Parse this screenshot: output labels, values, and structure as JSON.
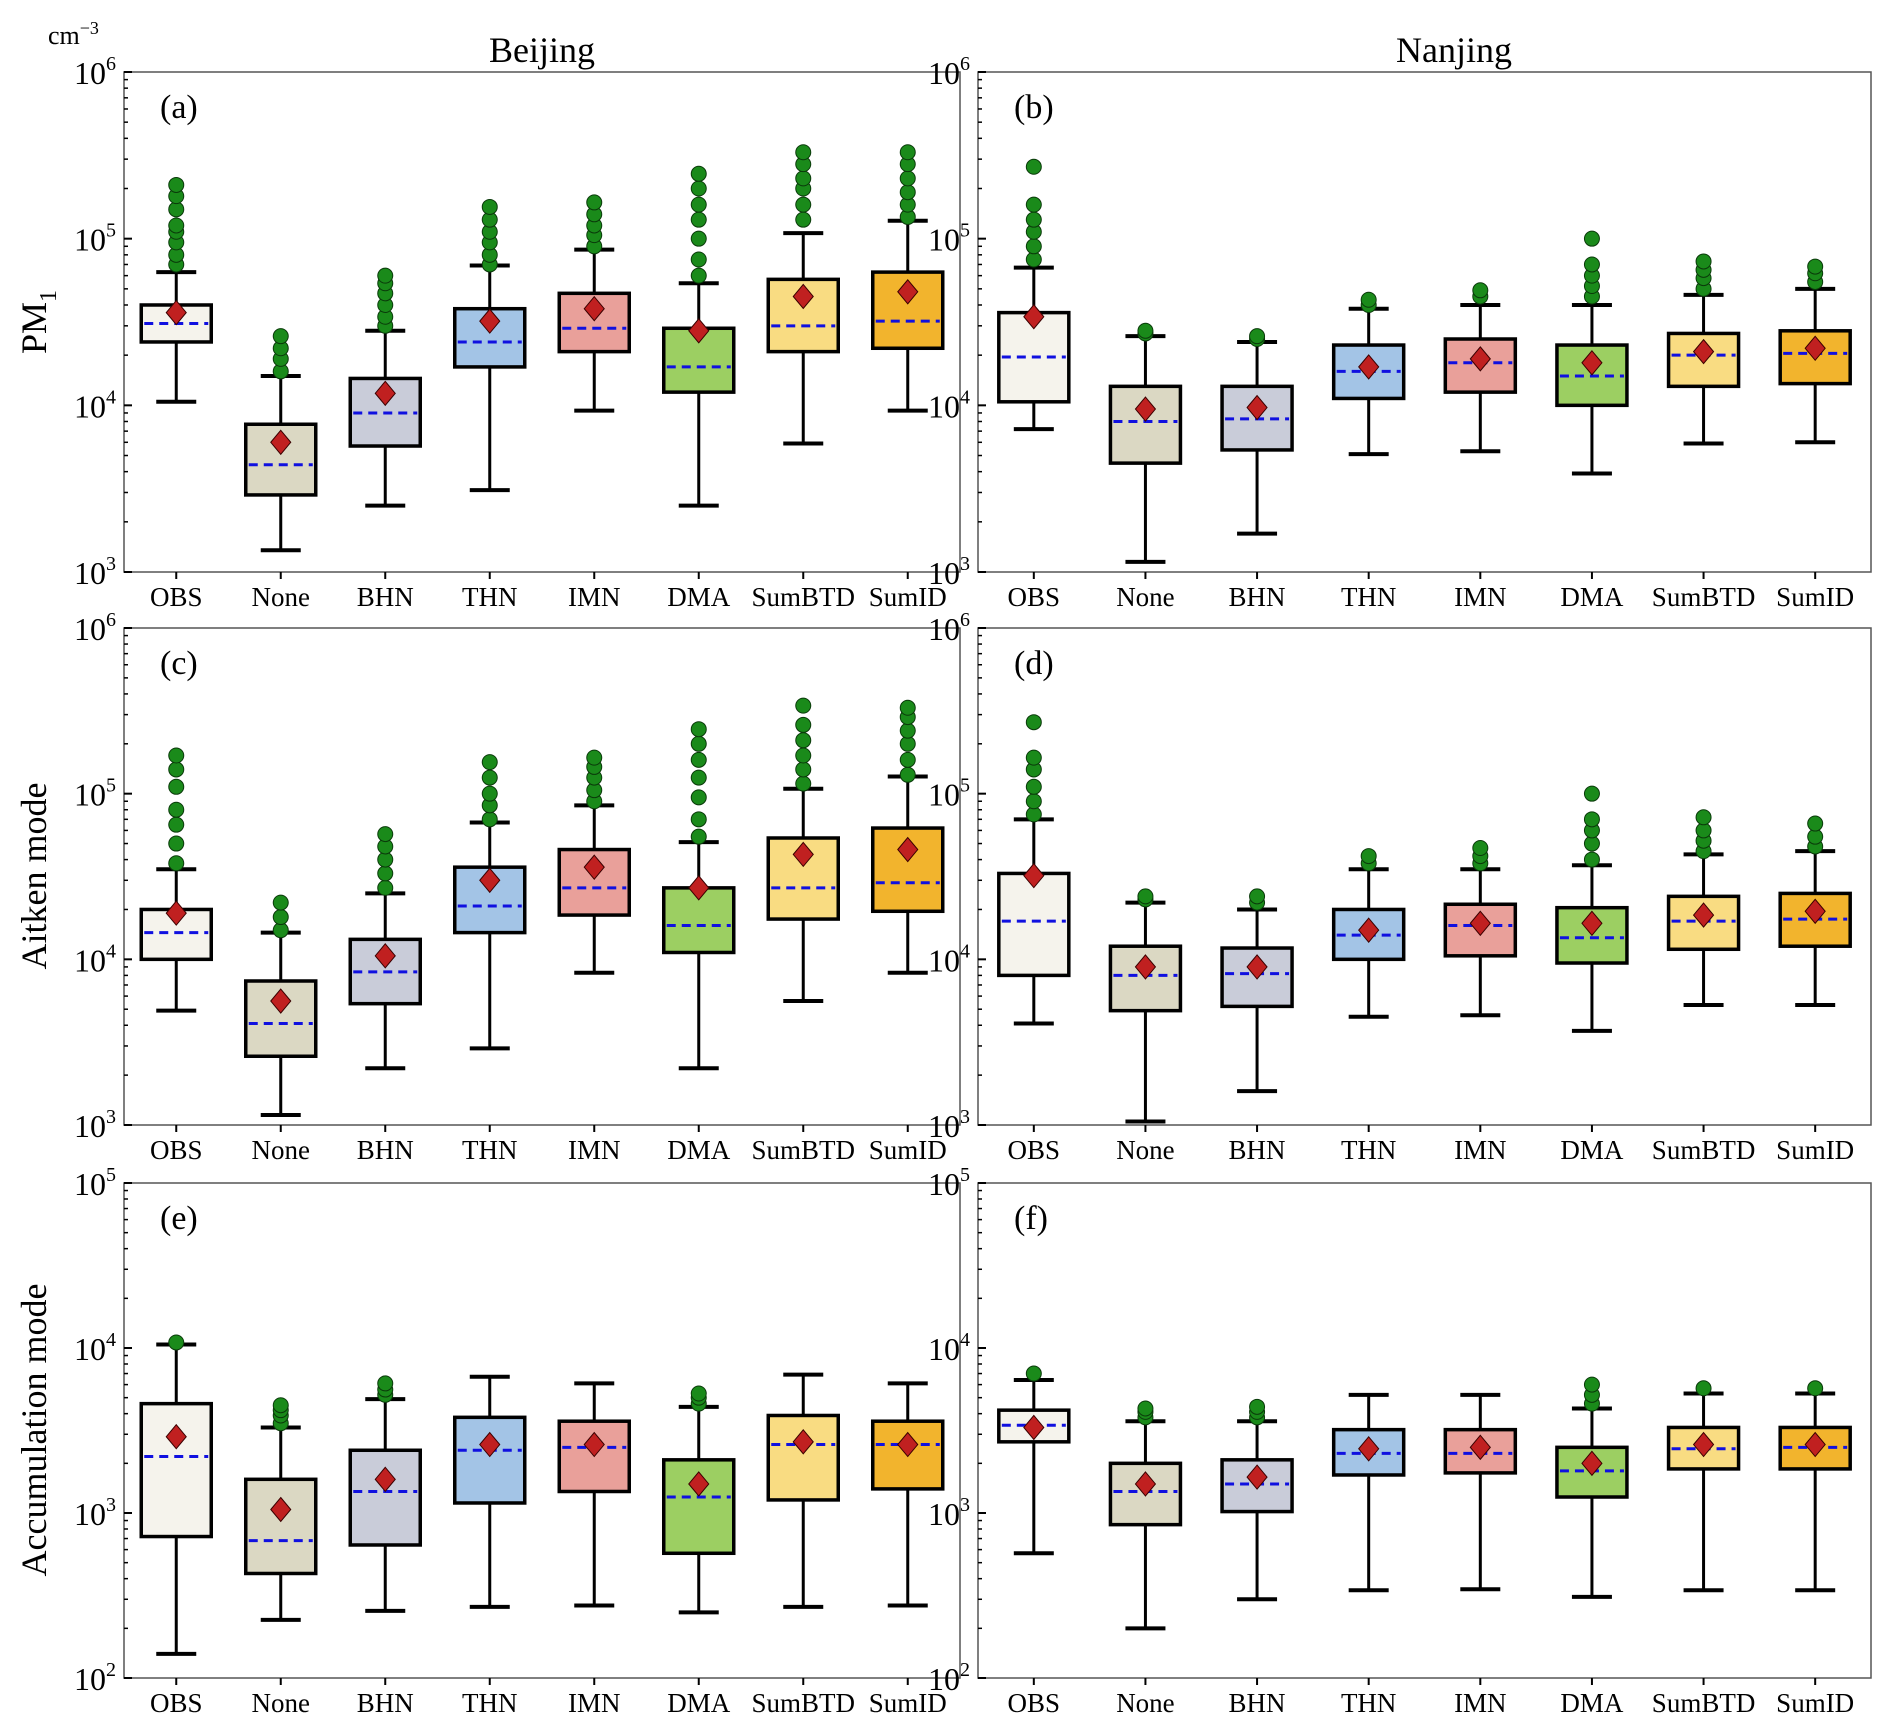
{
  "unit_label": "cm",
  "unit_exp": "−3",
  "column_titles": [
    "Beijing",
    "Nanjing"
  ],
  "row_labels": [
    {
      "main": "PM",
      "sub": "1"
    },
    {
      "main": "Aitken mode",
      "sub": ""
    },
    {
      "main": "Accumulation mode",
      "sub": ""
    }
  ],
  "colors": {
    "OBS": "#f5f3ec",
    "None": "#dbd8c3",
    "BHN": "#c9ccd9",
    "THN": "#a3c4e6",
    "IMN": "#e9a09a",
    "DMA": "#9ccf62",
    "SumBTD": "#f9dc82",
    "SumID": "#f2b42d",
    "median": "#1010e0",
    "mean": "#c02020",
    "outlier": "#1a8a1a"
  },
  "chart_data": [
    {
      "type": "box",
      "label": "(a)",
      "title": "Beijing",
      "ylabel": "PM1",
      "yscale": "log",
      "ylim": [
        1000,
        1000000
      ],
      "categories": [
        "OBS",
        "None",
        "BHN",
        "THN",
        "IMN",
        "DMA",
        "SumBTD",
        "SumID"
      ],
      "boxes": [
        {
          "whislo": 10500,
          "q1": 24000,
          "med": 31000,
          "q3": 40000,
          "whishi": 63000,
          "mean": 36000,
          "fliers": [
            70000,
            80000,
            95000,
            110000,
            120000,
            150000,
            180000,
            210000
          ]
        },
        {
          "whislo": 1350,
          "q1": 2900,
          "med": 4400,
          "q3": 7700,
          "whishi": 15000,
          "mean": 6000,
          "fliers": [
            16000,
            19000,
            22000,
            26000
          ]
        },
        {
          "whislo": 2500,
          "q1": 5700,
          "med": 9000,
          "q3": 14500,
          "whishi": 28000,
          "mean": 11800,
          "fliers": [
            30000,
            34000,
            40000,
            47000,
            54000,
            60000
          ]
        },
        {
          "whislo": 3100,
          "q1": 17000,
          "med": 24000,
          "q3": 38000,
          "whishi": 69000,
          "mean": 32000,
          "fliers": [
            70000,
            80000,
            95000,
            110000,
            130000,
            155000
          ]
        },
        {
          "whislo": 9300,
          "q1": 21000,
          "med": 29000,
          "q3": 47000,
          "whishi": 86000,
          "mean": 38000,
          "fliers": [
            90000,
            105000,
            120000,
            140000,
            165000
          ]
        },
        {
          "whislo": 2500,
          "q1": 12000,
          "med": 17000,
          "q3": 29000,
          "whishi": 54000,
          "mean": 28000,
          "fliers": [
            60000,
            75000,
            100000,
            130000,
            160000,
            200000,
            245000
          ]
        },
        {
          "whislo": 5900,
          "q1": 21000,
          "med": 30000,
          "q3": 57000,
          "whishi": 108000,
          "mean": 45000,
          "fliers": [
            130000,
            160000,
            200000,
            230000,
            280000,
            330000
          ]
        },
        {
          "whislo": 9300,
          "q1": 22000,
          "med": 32000,
          "q3": 63000,
          "whishi": 128000,
          "mean": 48000,
          "fliers": [
            135000,
            160000,
            190000,
            230000,
            280000,
            330000
          ]
        }
      ]
    },
    {
      "type": "box",
      "label": "(b)",
      "title": "Nanjing",
      "ylabel": "",
      "yscale": "log",
      "ylim": [
        1000,
        1000000
      ],
      "categories": [
        "OBS",
        "None",
        "BHN",
        "THN",
        "IMN",
        "DMA",
        "SumBTD",
        "SumID"
      ],
      "boxes": [
        {
          "whislo": 7200,
          "q1": 10500,
          "med": 19500,
          "q3": 36000,
          "whishi": 67000,
          "mean": 34000,
          "fliers": [
            75000,
            90000,
            110000,
            130000,
            160000,
            270000
          ]
        },
        {
          "whislo": 1150,
          "q1": 4500,
          "med": 8000,
          "q3": 13000,
          "whishi": 26000,
          "mean": 9500,
          "fliers": [
            27000,
            28000
          ]
        },
        {
          "whislo": 1700,
          "q1": 5400,
          "med": 8300,
          "q3": 13000,
          "whishi": 24000,
          "mean": 9700,
          "fliers": [
            25000,
            26000
          ]
        },
        {
          "whislo": 5100,
          "q1": 11000,
          "med": 16000,
          "q3": 23000,
          "whishi": 38000,
          "mean": 17000,
          "fliers": [
            40000,
            43000
          ]
        },
        {
          "whislo": 5300,
          "q1": 12000,
          "med": 18000,
          "q3": 25000,
          "whishi": 40000,
          "mean": 19000,
          "fliers": [
            45000,
            49000
          ]
        },
        {
          "whislo": 3900,
          "q1": 10000,
          "med": 15000,
          "q3": 23000,
          "whishi": 40000,
          "mean": 18000,
          "fliers": [
            45000,
            52000,
            60000,
            70000,
            100000
          ]
        },
        {
          "whislo": 5900,
          "q1": 13000,
          "med": 20000,
          "q3": 27000,
          "whishi": 46000,
          "mean": 21000,
          "fliers": [
            50000,
            58000,
            65000,
            73000
          ]
        },
        {
          "whislo": 6000,
          "q1": 13500,
          "med": 20500,
          "q3": 28000,
          "whishi": 50000,
          "mean": 22000,
          "fliers": [
            55000,
            62000,
            68000
          ]
        }
      ]
    },
    {
      "type": "box",
      "label": "(c)",
      "title": "",
      "ylabel": "Aitken mode",
      "yscale": "log",
      "ylim": [
        1000,
        1000000
      ],
      "categories": [
        "OBS",
        "None",
        "BHN",
        "THN",
        "IMN",
        "DMA",
        "SumBTD",
        "SumID"
      ],
      "boxes": [
        {
          "whislo": 4900,
          "q1": 10000,
          "med": 14500,
          "q3": 20000,
          "whishi": 35000,
          "mean": 19000,
          "fliers": [
            38000,
            50000,
            65000,
            80000,
            110000,
            140000,
            170000
          ]
        },
        {
          "whislo": 1150,
          "q1": 2600,
          "med": 4100,
          "q3": 7400,
          "whishi": 14500,
          "mean": 5600,
          "fliers": [
            15000,
            18000,
            22000
          ]
        },
        {
          "whislo": 2200,
          "q1": 5400,
          "med": 8400,
          "q3": 13200,
          "whishi": 25000,
          "mean": 10500,
          "fliers": [
            27000,
            33000,
            40000,
            48000,
            57000
          ]
        },
        {
          "whislo": 2900,
          "q1": 14500,
          "med": 21000,
          "q3": 36000,
          "whishi": 67000,
          "mean": 30000,
          "fliers": [
            70000,
            85000,
            100000,
            125000,
            155000
          ]
        },
        {
          "whislo": 8300,
          "q1": 18500,
          "med": 27000,
          "q3": 46000,
          "whishi": 85000,
          "mean": 36000,
          "fliers": [
            90000,
            105000,
            125000,
            145000,
            165000
          ]
        },
        {
          "whislo": 2200,
          "q1": 11000,
          "med": 16000,
          "q3": 27000,
          "whishi": 51000,
          "mean": 27000,
          "fliers": [
            55000,
            70000,
            95000,
            125000,
            160000,
            200000,
            245000
          ]
        },
        {
          "whislo": 5600,
          "q1": 17500,
          "med": 27000,
          "q3": 54000,
          "whishi": 107000,
          "mean": 43000,
          "fliers": [
            115000,
            140000,
            170000,
            210000,
            260000,
            340000
          ]
        },
        {
          "whislo": 8300,
          "q1": 19500,
          "med": 29000,
          "q3": 62000,
          "whishi": 127000,
          "mean": 46000,
          "fliers": [
            130000,
            160000,
            200000,
            240000,
            290000,
            330000
          ]
        }
      ]
    },
    {
      "type": "box",
      "label": "(d)",
      "title": "",
      "ylabel": "",
      "yscale": "log",
      "ylim": [
        1000,
        1000000
      ],
      "categories": [
        "OBS",
        "None",
        "BHN",
        "THN",
        "IMN",
        "DMA",
        "SumBTD",
        "SumID"
      ],
      "boxes": [
        {
          "whislo": 4100,
          "q1": 8000,
          "med": 17000,
          "q3": 33000,
          "whishi": 70000,
          "mean": 32000,
          "fliers": [
            75000,
            90000,
            110000,
            140000,
            165000,
            270000
          ]
        },
        {
          "whislo": 1050,
          "q1": 4900,
          "med": 8000,
          "q3": 12000,
          "whishi": 22000,
          "mean": 9000,
          "fliers": [
            23000,
            24000
          ]
        },
        {
          "whislo": 1600,
          "q1": 5200,
          "med": 8200,
          "q3": 11700,
          "whishi": 20000,
          "mean": 9000,
          "fliers": [
            22000,
            24000
          ]
        },
        {
          "whislo": 4500,
          "q1": 10000,
          "med": 14000,
          "q3": 20000,
          "whishi": 35000,
          "mean": 15000,
          "fliers": [
            38000,
            42000
          ]
        },
        {
          "whislo": 4600,
          "q1": 10500,
          "med": 16000,
          "q3": 21500,
          "whishi": 35000,
          "mean": 16500,
          "fliers": [
            38000,
            42000,
            47000
          ]
        },
        {
          "whislo": 3700,
          "q1": 9500,
          "med": 13500,
          "q3": 20500,
          "whishi": 37000,
          "mean": 16500,
          "fliers": [
            40000,
            50000,
            60000,
            70000,
            100000
          ]
        },
        {
          "whislo": 5300,
          "q1": 11500,
          "med": 17000,
          "q3": 24000,
          "whishi": 43000,
          "mean": 18500,
          "fliers": [
            45000,
            52000,
            60000,
            72000
          ]
        },
        {
          "whislo": 5300,
          "q1": 12000,
          "med": 17500,
          "q3": 25000,
          "whishi": 45000,
          "mean": 19500,
          "fliers": [
            48000,
            55000,
            66000
          ]
        }
      ]
    },
    {
      "type": "box",
      "label": "(e)",
      "title": "",
      "ylabel": "Accumulation mode",
      "yscale": "log",
      "ylim": [
        100,
        100000
      ],
      "categories": [
        "OBS",
        "None",
        "BHN",
        "THN",
        "IMN",
        "DMA",
        "SumBTD",
        "SumID"
      ],
      "boxes": [
        {
          "whislo": 140,
          "q1": 720,
          "med": 2200,
          "q3": 4600,
          "whishi": 10500,
          "mean": 2900,
          "fliers": [
            10800
          ]
        },
        {
          "whislo": 225,
          "q1": 430,
          "med": 680,
          "q3": 1600,
          "whishi": 3300,
          "mean": 1050,
          "fliers": [
            3500,
            3900,
            4200,
            4500
          ]
        },
        {
          "whislo": 255,
          "q1": 640,
          "med": 1350,
          "q3": 2400,
          "whishi": 4900,
          "mean": 1600,
          "fliers": [
            5200,
            5600,
            6100
          ]
        },
        {
          "whislo": 270,
          "q1": 1150,
          "med": 2400,
          "q3": 3800,
          "whishi": 6700,
          "mean": 2600,
          "fliers": []
        },
        {
          "whislo": 275,
          "q1": 1350,
          "med": 2500,
          "q3": 3600,
          "whishi": 6100,
          "mean": 2600,
          "fliers": []
        },
        {
          "whislo": 250,
          "q1": 570,
          "med": 1250,
          "q3": 2100,
          "whishi": 4400,
          "mean": 1500,
          "fliers": [
            4600,
            5000,
            5300
          ]
        },
        {
          "whislo": 270,
          "q1": 1200,
          "med": 2600,
          "q3": 3900,
          "whishi": 6900,
          "mean": 2700,
          "fliers": []
        },
        {
          "whislo": 275,
          "q1": 1400,
          "med": 2600,
          "q3": 3600,
          "whishi": 6100,
          "mean": 2600,
          "fliers": []
        }
      ]
    },
    {
      "type": "box",
      "label": "(f)",
      "title": "",
      "ylabel": "",
      "yscale": "log",
      "ylim": [
        100,
        100000
      ],
      "categories": [
        "OBS",
        "None",
        "BHN",
        "THN",
        "IMN",
        "DMA",
        "SumBTD",
        "SumID"
      ],
      "boxes": [
        {
          "whislo": 570,
          "q1": 2700,
          "med": 3400,
          "q3": 4200,
          "whishi": 6400,
          "mean": 3300,
          "fliers": [
            7000
          ]
        },
        {
          "whislo": 200,
          "q1": 850,
          "med": 1350,
          "q3": 2000,
          "whishi": 3600,
          "mean": 1500,
          "fliers": [
            3800,
            4100,
            4300
          ]
        },
        {
          "whislo": 300,
          "q1": 1020,
          "med": 1500,
          "q3": 2100,
          "whishi": 3600,
          "mean": 1650,
          "fliers": [
            3800,
            4100,
            4400
          ]
        },
        {
          "whislo": 340,
          "q1": 1700,
          "med": 2300,
          "q3": 3200,
          "whishi": 5200,
          "mean": 2450,
          "fliers": []
        },
        {
          "whislo": 345,
          "q1": 1750,
          "med": 2300,
          "q3": 3200,
          "whishi": 5200,
          "mean": 2500,
          "fliers": []
        },
        {
          "whislo": 310,
          "q1": 1250,
          "med": 1800,
          "q3": 2500,
          "whishi": 4300,
          "mean": 2000,
          "fliers": [
            4600,
            5200,
            6000
          ]
        },
        {
          "whislo": 340,
          "q1": 1850,
          "med": 2450,
          "q3": 3300,
          "whishi": 5300,
          "mean": 2600,
          "fliers": [
            5700
          ]
        },
        {
          "whislo": 340,
          "q1": 1850,
          "med": 2500,
          "q3": 3300,
          "whishi": 5300,
          "mean": 2600,
          "fliers": [
            5700
          ]
        }
      ]
    }
  ]
}
